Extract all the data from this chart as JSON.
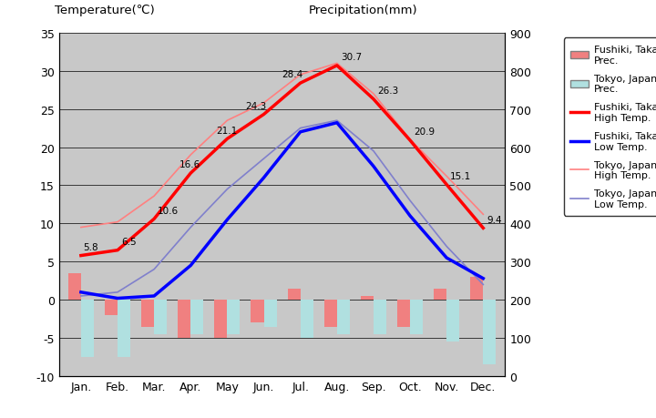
{
  "months": [
    "Jan.",
    "Feb.",
    "Mar.",
    "Apr.",
    "May",
    "Jun.",
    "Jul.",
    "Aug.",
    "Sep.",
    "Oct.",
    "Nov.",
    "Dec."
  ],
  "fushiki_high": [
    5.8,
    6.5,
    10.6,
    16.6,
    21.1,
    24.3,
    28.4,
    30.7,
    26.3,
    20.9,
    15.1,
    9.4
  ],
  "fushiki_low": [
    1.0,
    0.2,
    0.5,
    4.5,
    10.5,
    16.0,
    22.0,
    23.2,
    17.5,
    11.0,
    5.5,
    2.8
  ],
  "tokyo_high": [
    9.5,
    10.2,
    13.6,
    19.0,
    23.5,
    25.8,
    29.5,
    31.0,
    27.0,
    21.0,
    16.2,
    11.2
  ],
  "tokyo_low": [
    0.5,
    1.0,
    4.0,
    9.5,
    14.5,
    18.5,
    22.5,
    23.5,
    19.5,
    13.0,
    7.0,
    2.0
  ],
  "fushiki_prec_temp": [
    3.5,
    -2.0,
    -3.5,
    -5.0,
    -5.0,
    -3.0,
    1.5,
    -3.5,
    0.5,
    -3.5,
    1.5,
    3.0
  ],
  "tokyo_prec_temp": [
    -7.5,
    -7.5,
    -4.5,
    -4.5,
    -4.5,
    -3.5,
    -5.0,
    -4.5,
    -4.5,
    -4.5,
    -5.5,
    -8.5
  ],
  "temp_ylim": [
    -10,
    35
  ],
  "prec_ylim": [
    0,
    900
  ],
  "background_color": "#c8c8c8",
  "fushiki_prec_color": "#f08080",
  "tokyo_prec_color": "#b0e0e0",
  "fushiki_high_color": "#ff0000",
  "fushiki_low_color": "#0000ff",
  "tokyo_high_color": "#ff8080",
  "tokyo_low_color": "#8080cc",
  "title_left": "Temperature(℃)",
  "title_right": "Precipitation(mm)",
  "grid_color": "#000000",
  "temp_ticks": [
    -10,
    -5,
    0,
    5,
    10,
    15,
    20,
    25,
    30,
    35
  ],
  "prec_ticks": [
    0,
    100,
    200,
    300,
    400,
    500,
    600,
    700,
    800,
    900
  ]
}
